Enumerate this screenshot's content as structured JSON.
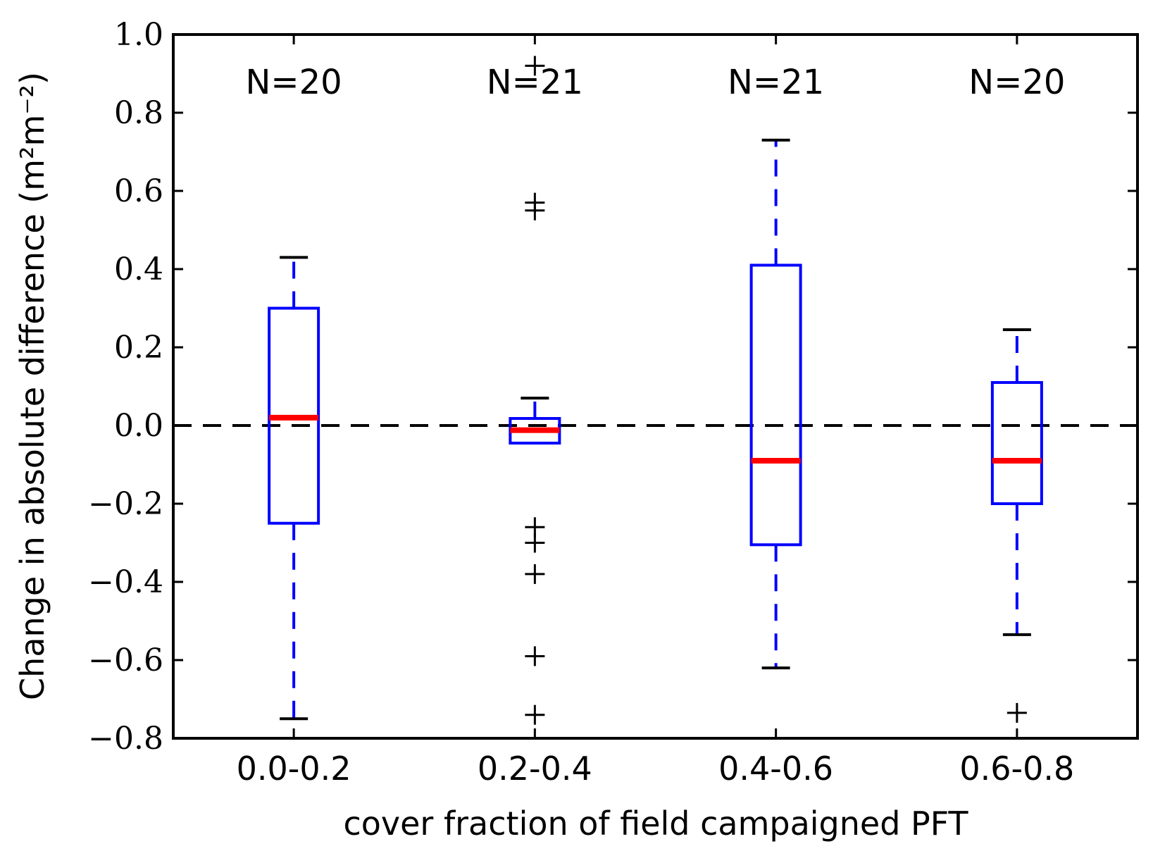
{
  "chart_data": {
    "type": "box",
    "xlabel": "cover fraction of field campaigned PFT",
    "ylabel": "Change in absolute difference (m²m⁻²)",
    "ylim": [
      -0.8,
      1.0
    ],
    "yticks": [
      -0.8,
      -0.6,
      -0.4,
      -0.2,
      0.0,
      0.2,
      0.4,
      0.6,
      0.8,
      1.0
    ],
    "ytick_labels": [
      "−0.8",
      "−0.6",
      "−0.4",
      "−0.2",
      "0.0",
      "0.2",
      "0.4",
      "0.6",
      "0.8",
      "1.0"
    ],
    "reference_line": 0.0,
    "grid": false,
    "colors": {
      "box": "#0000ff",
      "median": "#ff0000",
      "whisker_cap": "#000000",
      "outlier": "#000000",
      "reference": "#000000"
    },
    "categories": [
      "0.0-0.2",
      "0.2-0.4",
      "0.4-0.6",
      "0.6-0.8"
    ],
    "counts": [
      "N=20",
      "N=21",
      "N=21",
      "N=20"
    ],
    "boxes": [
      {
        "q1": -0.25,
        "median": 0.02,
        "q3": 0.3,
        "whislo": -0.75,
        "whishi": 0.43,
        "fliers": []
      },
      {
        "q1": -0.045,
        "median": -0.012,
        "q3": 0.018,
        "whislo": -0.045,
        "whishi": 0.07,
        "fliers": [
          0.92,
          0.57,
          0.55,
          -0.26,
          -0.3,
          -0.38,
          -0.59,
          -0.74
        ]
      },
      {
        "q1": -0.305,
        "median": -0.09,
        "q3": 0.41,
        "whislo": -0.62,
        "whishi": 0.73,
        "fliers": []
      },
      {
        "q1": -0.2,
        "median": -0.09,
        "q3": 0.11,
        "whislo": -0.535,
        "whishi": 0.245,
        "fliers": [
          -0.735
        ]
      }
    ]
  }
}
